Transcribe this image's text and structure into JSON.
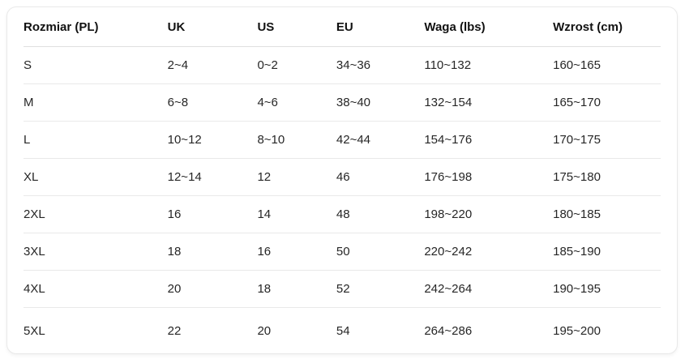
{
  "chart_data": {
    "type": "table",
    "columns": [
      "Rozmiar (PL)",
      "UK",
      "US",
      "EU",
      "Waga (lbs)",
      "Wzrost (cm)"
    ],
    "rows": [
      [
        "S",
        "2~4",
        "0~2",
        "34~36",
        "110~132",
        "160~165"
      ],
      [
        "M",
        "6~8",
        "4~6",
        "38~40",
        "132~154",
        "165~170"
      ],
      [
        "L",
        "10~12",
        "8~10",
        "42~44",
        "154~176",
        "170~175"
      ],
      [
        "XL",
        "12~14",
        "12",
        "46",
        "176~198",
        "175~180"
      ],
      [
        "2XL",
        "16",
        "14",
        "48",
        "198~220",
        "180~185"
      ],
      [
        "3XL",
        "18",
        "16",
        "50",
        "220~242",
        "185~190"
      ],
      [
        "4XL",
        "20",
        "18",
        "52",
        "242~264",
        "190~195"
      ],
      [
        "5XL",
        "22",
        "20",
        "54",
        "264~286",
        "195~200"
      ]
    ]
  },
  "colors": {
    "card_background": "#ffffff",
    "card_border": "#e9e9e9",
    "header_text": "#111111",
    "cell_text": "#262626",
    "divider": "#e9e9e9"
  }
}
